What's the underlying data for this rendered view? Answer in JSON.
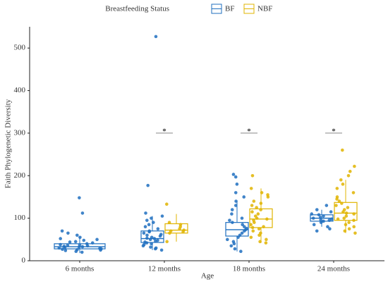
{
  "chart_data": {
    "type": "box",
    "legend_title": "Breastfeeding Status",
    "x_label": "Age",
    "y_label": "Faith Phylogenetic Diversity",
    "categories": [
      "6 months",
      "12 months",
      "18 months",
      "24 months"
    ],
    "ylim": [
      0,
      550
    ],
    "yticks": [
      0,
      100,
      200,
      300,
      400,
      500
    ],
    "legend": "top",
    "series": [
      {
        "name": "BF",
        "color": "#1f6fbf",
        "boxes": [
          {
            "whisker_low": 18,
            "q1": 28,
            "median": 33,
            "q3": 40,
            "whisker_high": 55
          },
          {
            "whisker_low": 25,
            "q1": 43,
            "median": 52,
            "q3": 70,
            "whisker_high": 105
          },
          {
            "whisker_low": 22,
            "q1": 58,
            "median": 73,
            "q3": 90,
            "whisker_high": 140
          },
          {
            "whisker_low": 80,
            "q1": 93,
            "median": 100,
            "q3": 108,
            "whisker_high": 120
          }
        ],
        "points": [
          [
            148,
            112,
            70,
            65,
            60,
            55,
            52,
            50,
            48,
            45,
            44,
            42,
            40,
            38,
            37,
            36,
            35,
            34,
            33,
            32,
            31,
            30,
            29,
            28,
            27,
            26,
            25,
            24,
            22,
            20
          ],
          [
            527,
            177,
            112,
            105,
            100,
            95,
            90,
            85,
            80,
            75,
            70,
            68,
            65,
            62,
            60,
            58,
            55,
            53,
            52,
            50,
            48,
            46,
            44,
            42,
            40,
            38,
            35,
            32,
            30,
            28,
            25
          ],
          [
            203,
            197,
            180,
            160,
            150,
            140,
            130,
            120,
            110,
            100,
            95,
            90,
            85,
            80,
            76,
            73,
            70,
            65,
            60,
            55,
            50,
            45,
            40,
            35,
            28,
            22
          ],
          [
            130,
            120,
            115,
            110,
            108,
            105,
            102,
            100,
            98,
            96,
            95,
            93,
            90,
            85,
            80,
            75,
            70
          ]
        ]
      },
      {
        "name": "NBF",
        "color": "#e0b400",
        "boxes": [
          null,
          {
            "whisker_low": 45,
            "q1": 65,
            "median": 72,
            "q3": 87,
            "whisker_high": 110
          },
          {
            "whisker_low": 42,
            "q1": 78,
            "median": 98,
            "q3": 122,
            "whisker_high": 170
          },
          {
            "whisker_low": 65,
            "q1": 95,
            "median": 112,
            "q3": 137,
            "whisker_high": 190
          }
        ],
        "points": [
          [],
          [
            133,
            90,
            85,
            80,
            75,
            72,
            70,
            68,
            65,
            45
          ],
          [
            200,
            170,
            160,
            155,
            150,
            140,
            135,
            130,
            125,
            120,
            115,
            110,
            105,
            100,
            98,
            95,
            90,
            85,
            80,
            78,
            75,
            70,
            65,
            60,
            55,
            50,
            45,
            42
          ],
          [
            260,
            222,
            210,
            200,
            190,
            180,
            170,
            160,
            150,
            145,
            140,
            135,
            130,
            125,
            120,
            115,
            112,
            110,
            105,
            100,
            98,
            95,
            90,
            85,
            80,
            75,
            70,
            65
          ]
        ]
      }
    ],
    "annotations": [
      {
        "x": "12 months",
        "y": 300,
        "label": "*"
      },
      {
        "x": "18 months",
        "y": 300,
        "label": "*"
      },
      {
        "x": "24 months",
        "y": 300,
        "label": "*"
      }
    ]
  }
}
